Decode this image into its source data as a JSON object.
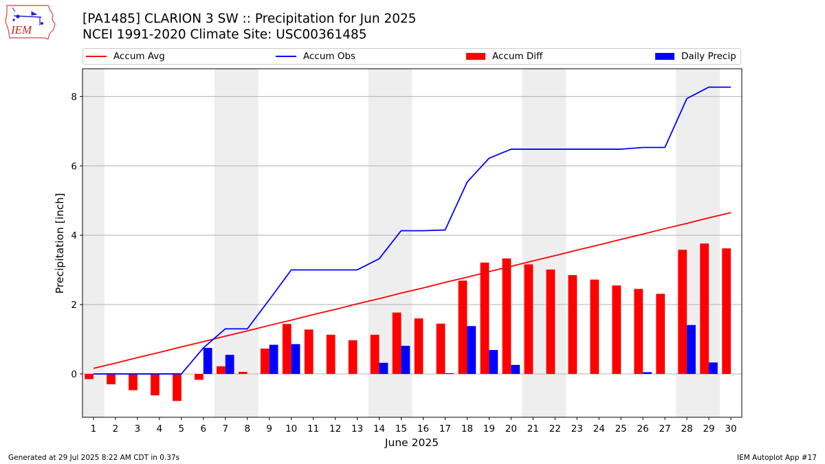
{
  "logo": {
    "text": "IEM"
  },
  "header": {
    "title": "[PA1485] CLARION 3 SW :: Precipitation for Jun 2025",
    "subtitle": "NCEI 1991-2020 Climate Site: USC00361485"
  },
  "footer": {
    "generated": "Generated at 29 Jul 2025 8:22 AM CDT in 0.37s",
    "app": "IEM Autoplot App #17"
  },
  "chart_data": {
    "type": "bar",
    "xlabel": "June 2025",
    "ylabel": "Precipitation [inch]",
    "xlim": [
      0.5,
      30.5
    ],
    "ylim": [
      -1.25,
      8.8
    ],
    "yticks": [
      0,
      2,
      4,
      6,
      8
    ],
    "grid": "horizontal",
    "legend_position": "top",
    "weekend_shading": [
      [
        0.5,
        1.5
      ],
      [
        6.5,
        8.5
      ],
      [
        13.5,
        15.5
      ],
      [
        20.5,
        22.5
      ],
      [
        27.5,
        29.5
      ]
    ],
    "categories": [
      "1",
      "2",
      "3",
      "4",
      "5",
      "6",
      "7",
      "8",
      "9",
      "10",
      "11",
      "12",
      "13",
      "14",
      "15",
      "16",
      "17",
      "18",
      "19",
      "20",
      "21",
      "22",
      "23",
      "24",
      "25",
      "26",
      "27",
      "28",
      "29",
      "30"
    ],
    "series": [
      {
        "name": "Accum Avg",
        "kind": "line",
        "color": "#ff0000",
        "values": [
          0.16,
          0.31,
          0.47,
          0.62,
          0.78,
          0.93,
          1.09,
          1.24,
          1.4,
          1.55,
          1.71,
          1.86,
          2.02,
          2.17,
          2.33,
          2.48,
          2.64,
          2.79,
          2.95,
          3.1,
          3.26,
          3.41,
          3.57,
          3.72,
          3.88,
          4.03,
          4.19,
          4.34,
          4.5,
          4.65
        ]
      },
      {
        "name": "Accum Obs",
        "kind": "line",
        "color": "#0000ff",
        "values": [
          0.0,
          0.0,
          0.0,
          0.0,
          0.0,
          0.75,
          1.3,
          1.3,
          2.14,
          3.0,
          3.0,
          3.0,
          3.0,
          3.32,
          4.13,
          4.13,
          4.15,
          5.53,
          6.22,
          6.48,
          6.48,
          6.48,
          6.48,
          6.48,
          6.48,
          6.53,
          6.53,
          7.94,
          8.27,
          8.27
        ]
      },
      {
        "name": "Accum Diff",
        "kind": "bar",
        "color": "#ff0000",
        "values": [
          -0.15,
          -0.3,
          -0.47,
          -0.62,
          -0.78,
          -0.17,
          0.22,
          0.06,
          0.73,
          1.44,
          1.28,
          1.13,
          0.97,
          1.13,
          1.77,
          1.6,
          1.45,
          2.69,
          3.21,
          3.33,
          3.16,
          3.01,
          2.85,
          2.72,
          2.55,
          2.45,
          2.31,
          3.58,
          3.76,
          3.62
        ]
      },
      {
        "name": "Daily Precip",
        "kind": "bar",
        "color": "#0000ff",
        "values": [
          0,
          0,
          0,
          0,
          0,
          0.75,
          0.55,
          0,
          0.84,
          0.86,
          0,
          0,
          0,
          0.32,
          0.81,
          0,
          0.02,
          1.38,
          0.69,
          0.26,
          0,
          0,
          0,
          0,
          0,
          0.05,
          0,
          1.41,
          0.33,
          0
        ]
      }
    ]
  }
}
